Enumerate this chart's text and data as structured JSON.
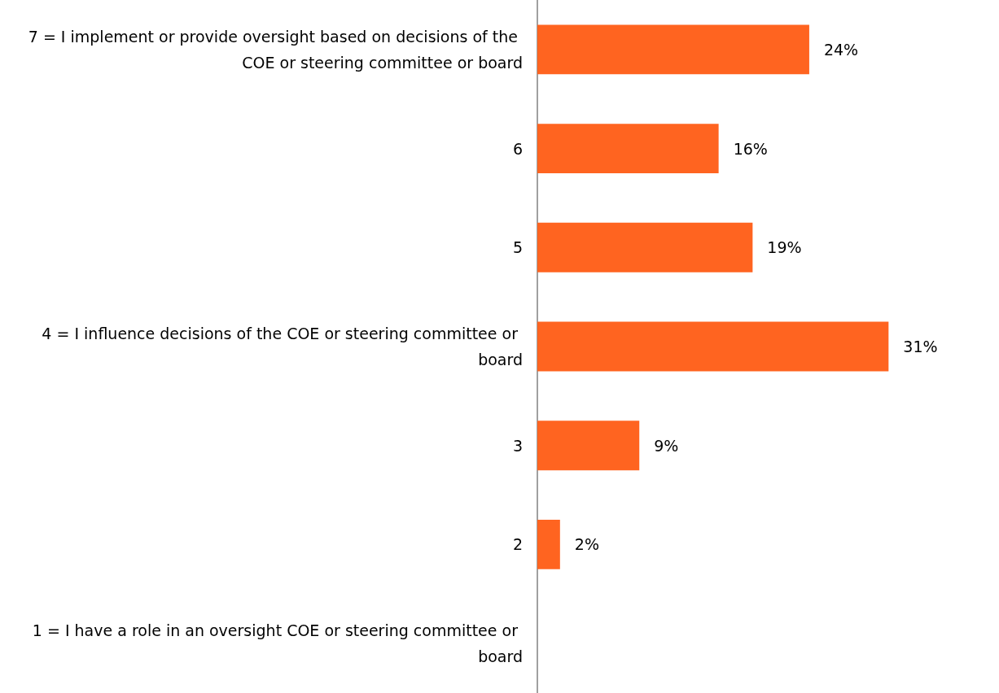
{
  "chart_data": {
    "type": "bar",
    "orientation": "horizontal",
    "categories": [
      "7 = I implement or provide oversight based on decisions of the COE or steering committee or board",
      "6",
      "5",
      "4 = I influence decisions of the COE or steering committee or board",
      "3",
      "2",
      "1 = I have a role in an oversight COE or steering committee or board"
    ],
    "values": [
      24,
      16,
      19,
      31,
      9,
      2,
      null
    ],
    "value_labels": [
      "24%",
      "16%",
      "19%",
      "31%",
      "9%",
      "2%",
      null
    ],
    "color": "#ff6420"
  }
}
